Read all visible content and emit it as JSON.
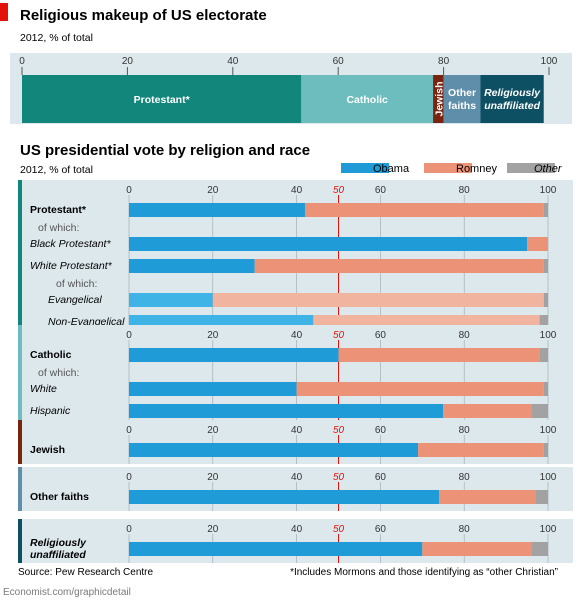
{
  "colors": {
    "accent": "#e3120b",
    "protestant": "#13867b",
    "catholic": "#6dbdbe",
    "jewish": "#7a2410",
    "other": "#5f8eaa",
    "unaffiliated": "#0d4f63",
    "obama": "#1f9cd8",
    "obama_light": "#3fb2e6",
    "romney": "#ec9277",
    "romney_light": "#f1b49f",
    "other_vote": "#a2a2a2"
  },
  "chart_data": [
    {
      "type": "bar",
      "orientation": "horizontal-stacked",
      "title": "Religious makeup of US electorate",
      "subtitle": "2012, % of total",
      "xlim": [
        0,
        100
      ],
      "ticks": [
        0,
        20,
        40,
        60,
        80,
        100
      ],
      "segments": [
        {
          "label": "Protestant*",
          "value": 53,
          "color_key": "protestant"
        },
        {
          "label": "Catholic",
          "value": 25,
          "color_key": "catholic"
        },
        {
          "label": "Jewish",
          "value": 2,
          "color_key": "jewish",
          "vertical_label": true
        },
        {
          "label": "Other faiths",
          "value": 7,
          "color_key": "other",
          "lines": [
            "Other",
            "faiths"
          ]
        },
        {
          "label": "Religiously unaffiliated",
          "value": 12,
          "color_key": "unaffiliated",
          "italic": true,
          "lines": [
            "Religiously",
            "unaffiliated"
          ]
        }
      ]
    },
    {
      "type": "bar",
      "orientation": "horizontal-stacked",
      "title": "US presidential vote by religion and race",
      "subtitle": "2012, % of total",
      "xlim": [
        0,
        100
      ],
      "ticks": [
        0,
        20,
        40,
        50,
        60,
        80,
        100
      ],
      "highlight_tick": 50,
      "legend": [
        {
          "label": "Obama",
          "color_key": "obama",
          "italic": false
        },
        {
          "label": "Romney",
          "color_key": "romney",
          "italic": false
        },
        {
          "label": "Other",
          "color_key": "other_vote",
          "italic": true
        }
      ],
      "groups": [
        {
          "name": "Protestant*",
          "color_key": "protestant",
          "rows": [
            {
              "label": "Protestant*",
              "bold": true,
              "obama": 42,
              "romney": 57,
              "other": 1
            },
            {
              "label": "of which:",
              "note": true
            },
            {
              "label": "Black Protestant*",
              "italic": true,
              "obama": 95,
              "romney": 5,
              "other": 0
            },
            {
              "label": "White Protestant*",
              "italic": true,
              "obama": 30,
              "romney": 69,
              "other": 1
            },
            {
              "label": "of which:",
              "note": true,
              "indent": true
            },
            {
              "label": "Evangelical",
              "italic": true,
              "indent": true,
              "light": true,
              "obama": 20,
              "romney": 79,
              "other": 1
            },
            {
              "label": "Non-Evangelical",
              "italic": true,
              "indent": true,
              "light": true,
              "obama": 44,
              "romney": 54,
              "other": 2
            }
          ]
        },
        {
          "name": "Catholic",
          "color_key": "catholic",
          "rows": [
            {
              "label": "Catholic",
              "bold": true,
              "obama": 50,
              "romney": 48,
              "other": 2
            },
            {
              "label": "of which:",
              "note": true
            },
            {
              "label": "White",
              "italic": true,
              "obama": 40,
              "romney": 59,
              "other": 1
            },
            {
              "label": "Hispanic",
              "italic": true,
              "obama": 75,
              "romney": 21,
              "other": 4
            }
          ]
        },
        {
          "name": "Jewish",
          "color_key": "jewish",
          "rows": [
            {
              "label": "Jewish",
              "bold": true,
              "obama": 69,
              "romney": 30,
              "other": 1
            }
          ]
        },
        {
          "name": "Other faiths",
          "color_key": "other",
          "rows": [
            {
              "label": "Other faiths",
              "bold": true,
              "obama": 74,
              "romney": 23,
              "other": 3
            }
          ]
        },
        {
          "name": "Religiously unaffiliated",
          "color_key": "unaffiliated",
          "rows": [
            {
              "label": "Religiously unaffiliated",
              "bold": true,
              "italic": true,
              "lines": [
                "Religiously",
                "unaffiliated"
              ],
              "obama": 70,
              "romney": 26,
              "other": 4
            }
          ]
        }
      ]
    }
  ],
  "footer": {
    "source": "Source: Pew Research Centre",
    "footnote": "*Includes Mormons and those identifying as “other Christian”",
    "credit": "Economist.com/graphicdetail"
  }
}
